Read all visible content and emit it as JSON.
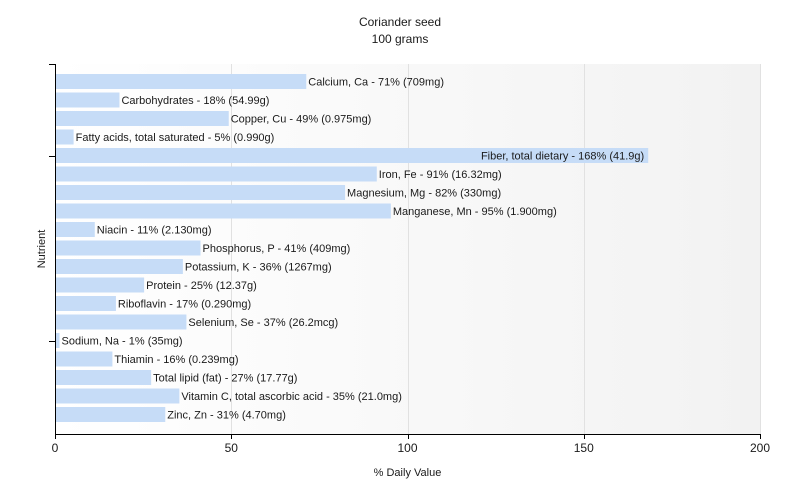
{
  "chart_data": {
    "type": "bar",
    "orientation": "horizontal",
    "title": "Coriander seed",
    "subtitle": "100 grams",
    "xlabel": "% Daily Value",
    "ylabel": "Nutrient",
    "xlim": [
      0,
      200
    ],
    "xticks": [
      0,
      50,
      100,
      150,
      200
    ],
    "grid": true,
    "bar_color": "#c6dcf7",
    "background_gradient": [
      "#ffffff",
      "#f2f2f2"
    ],
    "categories": [
      "Calcium, Ca",
      "Carbohydrates",
      "Copper, Cu",
      "Fatty acids, total saturated",
      "Fiber, total dietary",
      "Iron, Fe",
      "Magnesium, Mg",
      "Manganese, Mn",
      "Niacin",
      "Phosphorus, P",
      "Potassium, K",
      "Protein",
      "Riboflavin",
      "Selenium, Se",
      "Sodium, Na",
      "Thiamin",
      "Total lipid (fat)",
      "Vitamin C, total ascorbic acid",
      "Zinc, Zn"
    ],
    "values": [
      71,
      18,
      49,
      5,
      168,
      91,
      82,
      95,
      11,
      41,
      36,
      25,
      17,
      37,
      1,
      16,
      27,
      35,
      31
    ],
    "labels": [
      "Calcium, Ca - 71% (709mg)",
      "Carbohydrates - 18% (54.99g)",
      "Copper, Cu - 49% (0.975mg)",
      "Fatty acids, total saturated - 5% (0.990g)",
      "Fiber, total dietary - 168% (41.9g)",
      "Iron, Fe - 91% (16.32mg)",
      "Magnesium, Mg - 82% (330mg)",
      "Manganese, Mn - 95% (1.900mg)",
      "Niacin - 11% (2.130mg)",
      "Phosphorus, P - 41% (409mg)",
      "Potassium, K - 36% (1267mg)",
      "Protein - 25% (12.37g)",
      "Riboflavin - 17% (0.290mg)",
      "Selenium, Se - 37% (26.2mcg)",
      "Sodium, Na - 1% (35mg)",
      "Thiamin - 16% (0.239mg)",
      "Total lipid (fat) - 27% (17.77g)",
      "Vitamin C, total ascorbic acid - 35% (21.0mg)",
      "Zinc, Zn - 31% (4.70mg)"
    ]
  }
}
